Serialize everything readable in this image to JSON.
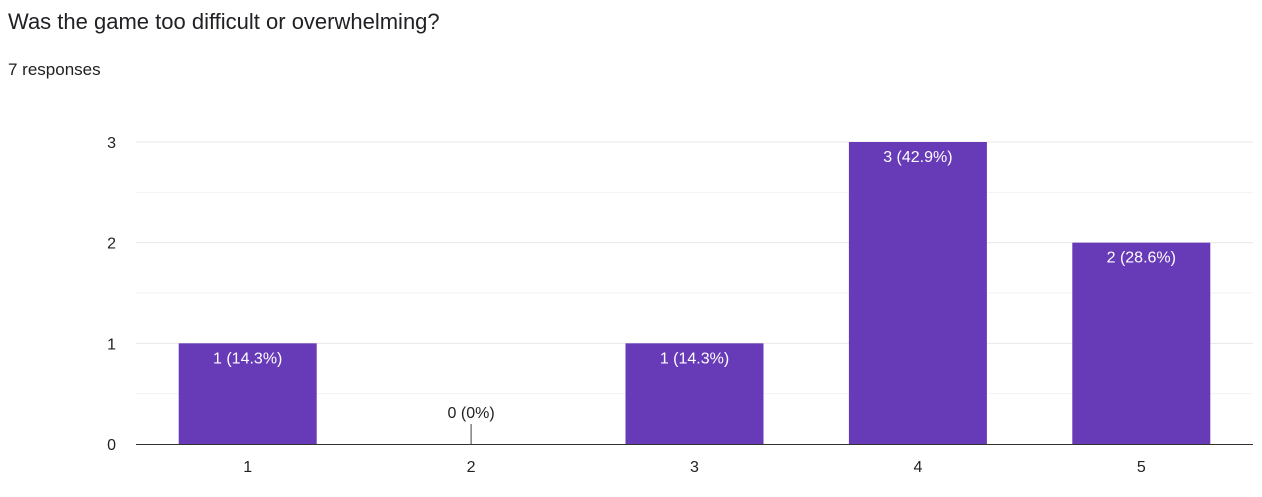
{
  "question": {
    "title": "Was the game too difficult or overwhelming?",
    "responses": "7 responses"
  },
  "colors": {
    "bar": "#673ab7",
    "gridline": "#e8e8e8",
    "minor_gridline": "#f3f3f3",
    "axis": "#333333",
    "text": "#222222",
    "label_on_bar": "#ffffff"
  },
  "chart_data": {
    "type": "bar",
    "categories": [
      "1",
      "2",
      "3",
      "4",
      "5"
    ],
    "values": [
      1,
      0,
      1,
      3,
      2
    ],
    "data_labels": [
      "1 (14.3%)",
      "0 (0%)",
      "1 (14.3%)",
      "3 (42.9%)",
      "2 (28.6%)"
    ],
    "yticks": [
      "0",
      "1",
      "2",
      "3"
    ],
    "ylim": [
      0,
      3
    ],
    "grid": true
  }
}
